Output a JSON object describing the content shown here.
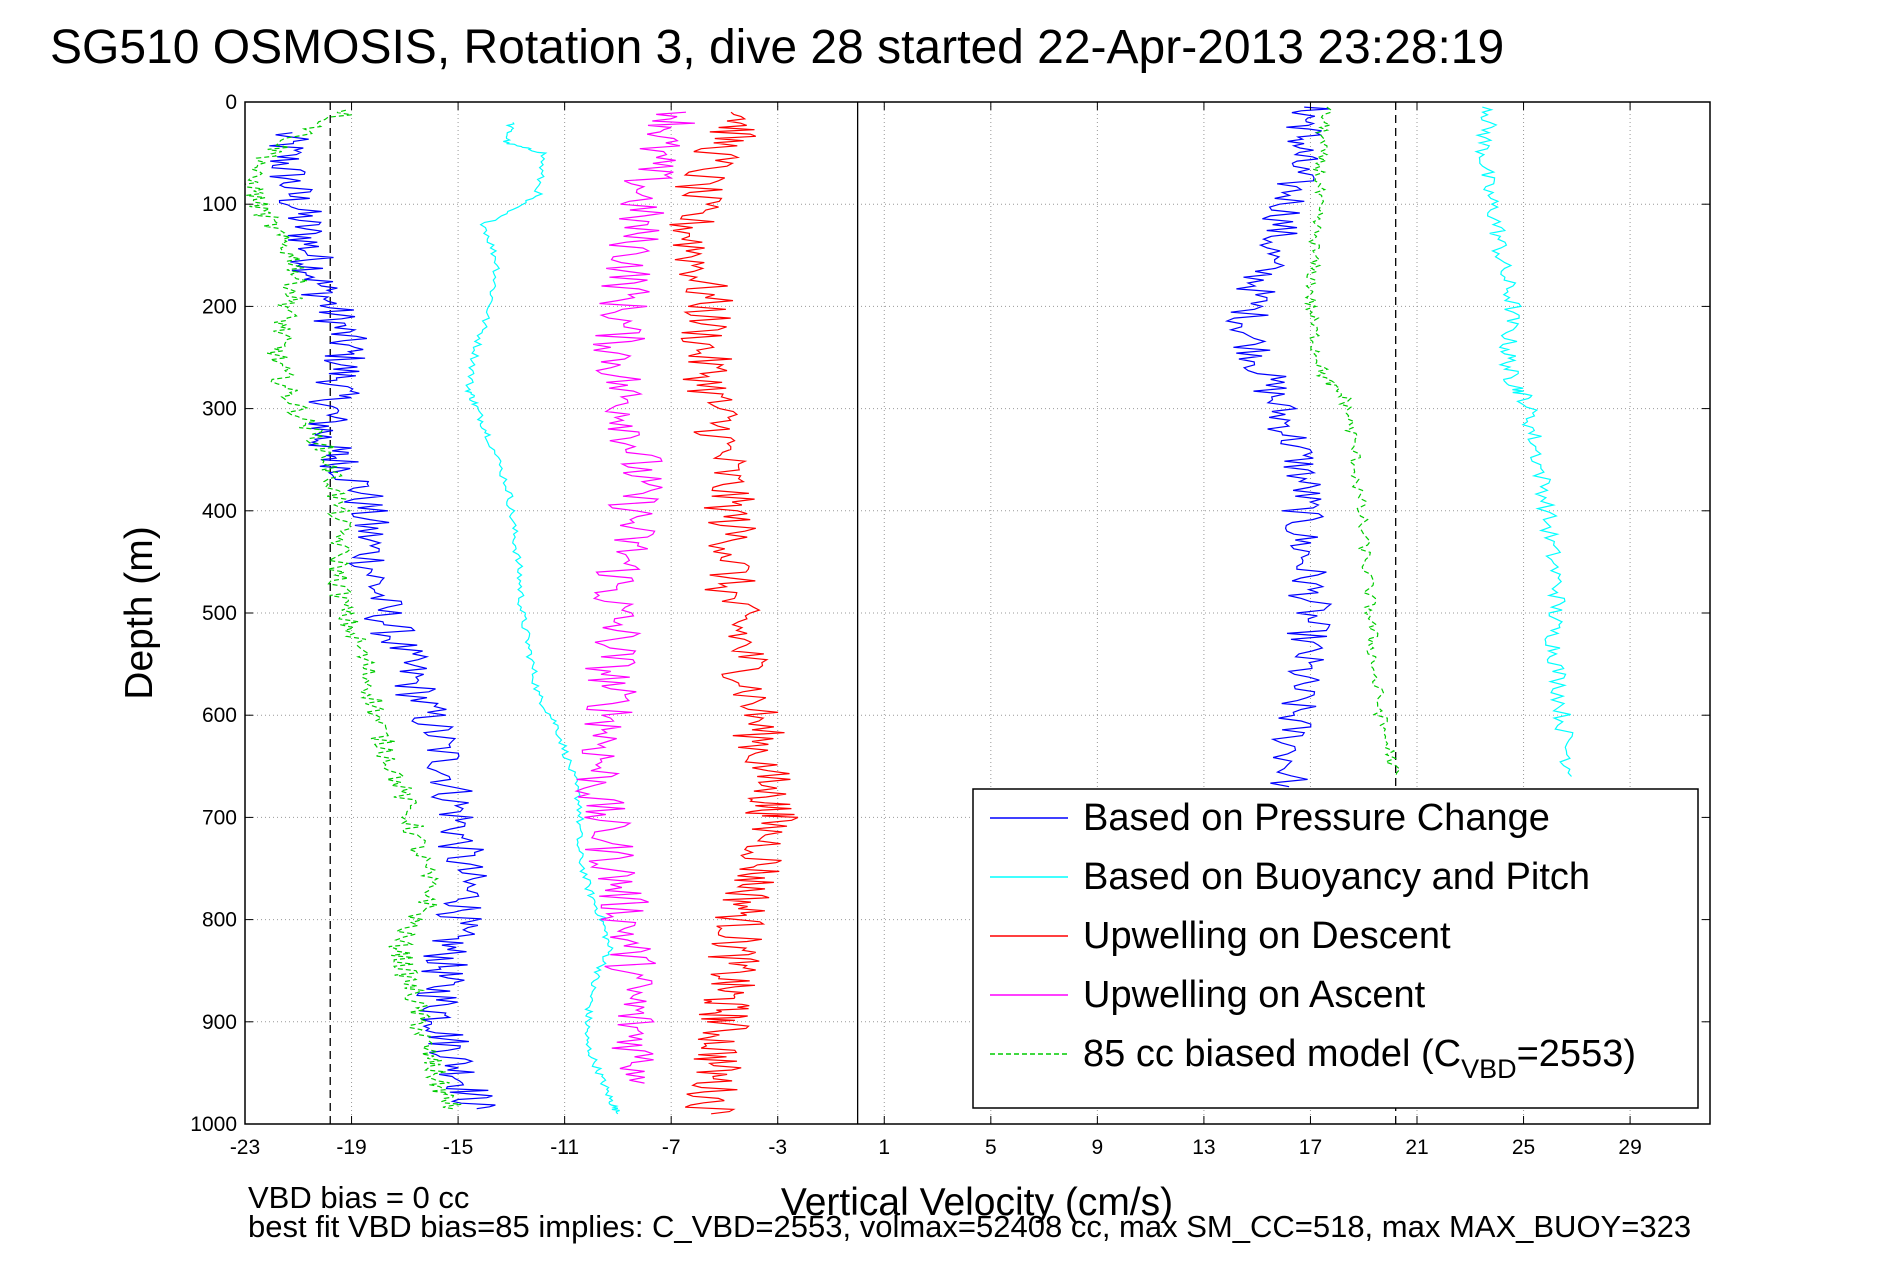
{
  "chart_data": {
    "type": "line",
    "title": "SG510 OSMOSIS, Rotation 3, dive 28 started 22-Apr-2013 23:28:19",
    "xlabel": "Vertical Velocity (cm/s)",
    "ylabel": "Depth (m)",
    "xlim": [
      -23,
      32
    ],
    "ylim": [
      0,
      1000
    ],
    "y_reversed": true,
    "grid": true,
    "x_ticks": [
      -23,
      -19,
      -15,
      -11,
      -7,
      -3,
      1,
      5,
      9,
      13,
      17,
      21,
      25,
      29
    ],
    "x_tick_labels": [
      "-23",
      "-19",
      "-15",
      "-11",
      "-7",
      "-3",
      "1",
      "5",
      "9",
      "13",
      "17",
      "21",
      "25",
      "29"
    ],
    "y_ticks": [
      0,
      100,
      200,
      300,
      400,
      500,
      600,
      700,
      800,
      900,
      1000
    ],
    "y_tick_labels": [
      "0",
      "100",
      "200",
      "300",
      "400",
      "500",
      "600",
      "700",
      "800",
      "900",
      "1000"
    ],
    "legend_position": "bottom-right",
    "reference_lines": [
      {
        "x": -19.8,
        "style": "dashed",
        "color": "#000000"
      },
      {
        "x": 0.0,
        "style": "solid",
        "color": "#000000"
      },
      {
        "x": 20.2,
        "style": "dashed",
        "color": "#000000"
      }
    ],
    "legend": [
      {
        "label": "Based on Pressure Change",
        "color": "#0000ff",
        "style": "solid"
      },
      {
        "label": "Based on Buoyancy and Pitch",
        "color": "#00ffff",
        "style": "solid"
      },
      {
        "label": "Upwelling on Descent",
        "color": "#ff0000",
        "style": "solid"
      },
      {
        "label": "Upwelling on Ascent",
        "color": "#ff00ff",
        "style": "solid"
      },
      {
        "label": "85 cc biased model (C",
        "label_sub": "VBD",
        "label_suffix": "=2553)",
        "color": "#00cc00",
        "style": "dashed"
      }
    ],
    "series": [
      {
        "name": "Based on Pressure Change (descent)",
        "color": "#0000ff",
        "style": "solid",
        "x": [
          -21.5,
          -21.5,
          -21.2,
          -20.8,
          -20.5,
          -20.2,
          -19.6,
          -19.2,
          -19.4,
          -19.8,
          -20.1,
          -19.5,
          -18.6,
          -18.4,
          -18.2,
          -17.8,
          -17.1,
          -16.5,
          -15.8,
          -15.3,
          -15.0,
          -14.9,
          -14.6,
          -15.2,
          -15.5,
          -15.7,
          -15.6,
          -15.2,
          -14.7,
          -14.3
        ],
        "y": [
          30,
          60,
          90,
          120,
          150,
          180,
          210,
          240,
          270,
          300,
          330,
          350,
          380,
          420,
          460,
          500,
          540,
          580,
          620,
          660,
          700,
          740,
          780,
          810,
          840,
          870,
          900,
          930,
          960,
          985
        ],
        "noise": 0.9
      },
      {
        "name": "Based on Pressure Change (ascent)",
        "color": "#0000ff",
        "style": "solid",
        "x": [
          17.0,
          16.8,
          16.5,
          16.2,
          15.6,
          15.0,
          14.6,
          15.2,
          15.8,
          16.5,
          16.8,
          16.6,
          16.9,
          17.0,
          16.8,
          16.5,
          16.3,
          16.2
        ],
        "y": [
          5,
          30,
          60,
          100,
          140,
          180,
          220,
          260,
          300,
          340,
          380,
          420,
          460,
          500,
          540,
          580,
          620,
          670
        ],
        "noise": 0.8
      },
      {
        "name": "Based on Buoyancy and Pitch (descent)",
        "color": "#00ffff",
        "style": "solid",
        "x": [
          -13.0,
          -13.2,
          -11.8,
          -12.0,
          -14.0,
          -13.5,
          -13.8,
          -14.3,
          -14.6,
          -14.3,
          -13.8,
          -13.1,
          -12.9,
          -12.7,
          -12.6,
          -12.3,
          -12.0,
          -11.3,
          -10.8,
          -10.4,
          -10.5,
          -10.1,
          -9.6,
          -9.3,
          -9.9,
          -10.1,
          -10.2,
          -9.7,
          -9.3,
          -9.0
        ],
        "y": [
          20,
          40,
          50,
          90,
          120,
          160,
          200,
          240,
          280,
          300,
          330,
          380,
          420,
          460,
          500,
          540,
          580,
          610,
          650,
          690,
          730,
          770,
          800,
          830,
          860,
          890,
          920,
          950,
          975,
          990
        ],
        "noise": 0.15
      },
      {
        "name": "Based on Buoyancy and Pitch (ascent)",
        "color": "#00ffff",
        "style": "solid",
        "x": [
          23.8,
          23.5,
          23.6,
          24.0,
          24.2,
          24.6,
          24.4,
          24.5,
          25.1,
          25.4,
          25.8,
          26.0,
          26.3,
          26.1,
          26.3,
          26.5,
          26.8
        ],
        "y": [
          5,
          40,
          80,
          120,
          160,
          200,
          240,
          270,
          290,
          330,
          380,
          430,
          480,
          520,
          560,
          610,
          660
        ],
        "noise": 0.35
      },
      {
        "name": "Upwelling on Descent",
        "color": "#ff0000",
        "style": "solid",
        "x": [
          -4.0,
          -5.0,
          -6.0,
          -6.3,
          -6.0,
          -5.6,
          -5.8,
          -5.5,
          -5.2,
          -5.0,
          -4.8,
          -4.6,
          -4.9,
          -4.4,
          -4.1,
          -3.8,
          -3.6,
          -3.3,
          -3.2,
          -3.5,
          -4.0,
          -4.4,
          -4.6,
          -4.8,
          -5.0,
          -5.0,
          -5.2,
          -5.4,
          -5.5
        ],
        "y": [
          10,
          40,
          80,
          120,
          160,
          200,
          240,
          280,
          320,
          360,
          400,
          440,
          480,
          520,
          560,
          600,
          640,
          680,
          700,
          740,
          770,
          800,
          830,
          860,
          880,
          900,
          930,
          960,
          990
        ],
        "noise": 1.0
      },
      {
        "name": "Upwelling on Ascent",
        "color": "#ff00ff",
        "style": "solid",
        "x": [
          -6.5,
          -7.5,
          -8.0,
          -8.3,
          -8.5,
          -8.8,
          -9.0,
          -8.9,
          -8.4,
          -8.2,
          -8.4,
          -8.6,
          -9.2,
          -9.0,
          -9.3,
          -9.2,
          -9.6,
          -9.8,
          -9.4,
          -9.0,
          -8.7,
          -8.5,
          -8.5,
          -8.3,
          -8.0
        ],
        "y": [
          10,
          40,
          80,
          120,
          160,
          200,
          240,
          280,
          320,
          360,
          400,
          440,
          480,
          520,
          560,
          600,
          640,
          680,
          720,
          760,
          800,
          840,
          880,
          920,
          960
        ],
        "noise": 1.0
      },
      {
        "name": "85 cc biased model (descent)",
        "color": "#00cc00",
        "style": "dashed",
        "x": [
          -19.0,
          -21.5,
          -22.8,
          -22.5,
          -21.8,
          -21.0,
          -21.2,
          -21.6,
          -21.8,
          -21.5,
          -20.8,
          -20.0,
          -19.6,
          -19.4,
          -19.5,
          -19.3,
          -18.6,
          -18.2,
          -17.9,
          -17.3,
          -16.8,
          -16.4,
          -16.0,
          -17.2,
          -17.0,
          -16.6,
          -16.4,
          -16.0,
          -15.7,
          -15.2
        ],
        "y": [
          8,
          40,
          70,
          100,
          130,
          160,
          190,
          220,
          250,
          280,
          310,
          340,
          380,
          420,
          460,
          500,
          540,
          580,
          620,
          660,
          700,
          740,
          780,
          820,
          850,
          880,
          910,
          940,
          965,
          985
        ],
        "noise": 0.45
      },
      {
        "name": "85 cc biased model (ascent)",
        "color": "#00cc00",
        "style": "dashed",
        "x": [
          17.6,
          17.4,
          17.3,
          17.2,
          17.1,
          17.0,
          17.2,
          17.5,
          18.3,
          18.6,
          18.8,
          19.0,
          19.2,
          19.3,
          19.4,
          19.7,
          20.2
        ],
        "y": [
          5,
          40,
          80,
          120,
          160,
          200,
          240,
          270,
          290,
          330,
          380,
          430,
          480,
          520,
          560,
          610,
          660
        ],
        "noise": 0.25
      }
    ]
  },
  "footer": {
    "line1": "VBD bias = 0 cc",
    "line2": "best fit VBD bias=85 implies: C_VBD=2553, volmax=52408 cc, max SM_CC=518, max MAX_BUOY=323"
  }
}
